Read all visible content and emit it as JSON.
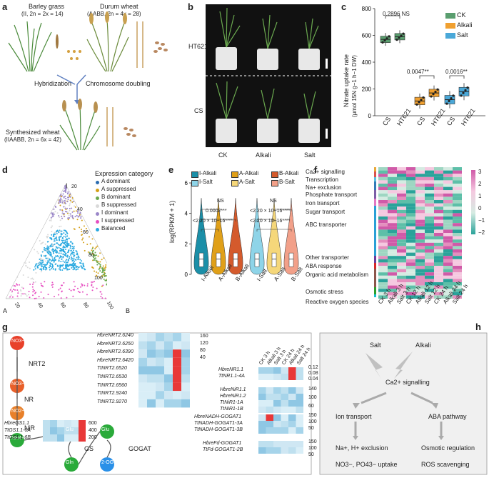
{
  "panels": [
    "a",
    "b",
    "c",
    "d",
    "e",
    "f",
    "g",
    "h"
  ],
  "a": {
    "barley_name": "Barley grass",
    "barley_genome": "(II, 2n = 2x = 14)",
    "durum_name": "Durum wheat",
    "durum_genome": "(AABB, 2n = 4x = 28)",
    "hybridization": "Hybridization",
    "doubling": "Chromosome doubling",
    "synth_name": "Synthesized wheat",
    "synth_genome": "(IIAABB, 2n = 6x = 42)"
  },
  "b": {
    "row1": "HT621",
    "row2": "CS",
    "cols": [
      "CK",
      "Alkali",
      "Salt"
    ]
  },
  "c": {
    "ylabel": "Nitrate uptake rate",
    "ylabel2": "(μmol 15N g−1 h−1 DW)",
    "legend": [
      "CK",
      "Alkali",
      "Salt"
    ],
    "legend_colors": [
      "#5a9e6f",
      "#f0a030",
      "#4aa8d8"
    ],
    "annotations": [
      "0.2896 NS",
      "0.0047**",
      "0.0016**"
    ],
    "xticks": [
      "CS",
      "HT621",
      "CS",
      "HT621",
      "CS",
      "HT621"
    ]
  },
  "chart_data": {
    "type": "box",
    "ylabel": "Nitrate uptake rate",
    "ylim": [
      0,
      800
    ],
    "yticks": [
      0,
      200,
      400,
      600,
      800
    ],
    "categories": [
      "CS",
      "HT621",
      "CS",
      "HT621",
      "CS",
      "HT621"
    ],
    "series": [
      {
        "name": "CK",
        "medians": [
          570,
          590
        ]
      },
      {
        "name": "Alkali",
        "medians": [
          110,
          170
        ]
      },
      {
        "name": "Salt",
        "medians": [
          120,
          180
        ]
      }
    ]
  },
  "d": {
    "legend_title": "Expression category",
    "categories": [
      "A dominant",
      "A suppressed",
      "B dominant",
      "B suppressed",
      "I dominant",
      "I suppressed",
      "Balanced"
    ],
    "colors": [
      "#2b6cb0",
      "#d4a017",
      "#6aa84f",
      "#d9d9d9",
      "#9a86c8",
      "#e64fc1",
      "#2aa9e0"
    ],
    "vertices": [
      "I",
      "A",
      "B"
    ],
    "ticks": [
      "20",
      "40",
      "60",
      "80",
      "100"
    ]
  },
  "e": {
    "ylabel": "log(RPKM + 1)",
    "legend": [
      "I-Alkali",
      "A-Alkali",
      "B-Alkali",
      "I-Salt",
      "A-Salt",
      "B-Salt"
    ],
    "colors": [
      "#1b8fa8",
      "#e0a019",
      "#d45a2c",
      "#8ed4e8",
      "#f5d77a",
      "#f2a089"
    ],
    "xticks": [
      "I-Alkali",
      "A-Alkali",
      "B-Alkali",
      "I-Salt",
      "A-Salt",
      "B-Salt"
    ],
    "yticks": [
      "0",
      "2",
      "4",
      "6"
    ],
    "stats_left": [
      "NS",
      "0.0002***",
      "<2.20 × 10−16****"
    ],
    "stats_right": [
      "NS",
      "<2.20 × 10−16****",
      "<2.20 × 10−16****"
    ]
  },
  "f": {
    "row_labels": [
      "Ca2+ signalling",
      "Transcription",
      "Na+ exclusion",
      "Phosphate transport",
      "Iron transport",
      "Sugar transport",
      "ABC transporter",
      "Other transporter",
      "ABA response",
      "Organic acid metabolism",
      "Osmotic stress",
      "Reactive oxygen species"
    ],
    "row_colors": [
      "#e8a838",
      "#d9534f",
      "#5bc0de",
      "#337ab7",
      "#7b5ea7",
      "#e377c2",
      "#2a9fd6",
      "#6a3d9a",
      "#d62728",
      "#8c564b",
      "#2ca02c",
      "#17becf"
    ],
    "col_labels": [
      "CK 3 h",
      "Alkali 3 h",
      "Salt 3 h",
      "CK 12 h",
      "Alkali 12 h",
      "Salt 12 h",
      "CK 24 h",
      "Alkali 24 h",
      "Salt 24 h"
    ],
    "scale": [
      "3",
      "2",
      "1",
      "0",
      "−1",
      "−2"
    ]
  },
  "g": {
    "pathway": [
      "NO3−",
      "NO3−",
      "NO2−",
      "NH4+",
      "Glu",
      "Glu",
      "Gln",
      "2-OG"
    ],
    "enzymes": [
      "NRT2",
      "NR",
      "NiR",
      "GS",
      "GOGAT"
    ],
    "nrt_genes": [
      "HbreNRT2.6240",
      "HbreNRT2.6250",
      "HbreNRT2.6390",
      "HbreNRT2.6420",
      "TtNRT2.6520",
      "TtNRT2.6530",
      "TtNRT2.6560",
      "TtNRT2.9240",
      "TtNRT2.9270"
    ],
    "nrt_scale": [
      "160",
      "120",
      "80",
      "40"
    ],
    "col_labels": [
      "CK 3 h",
      "Alkali 3 h",
      "Salt 3 h",
      "CK 24 h",
      "Alkali 24 h",
      "Salt 24 h"
    ],
    "nr_genes": [
      "HbreNR1.1",
      "TtNR1.1-4A"
    ],
    "nr_scale": [
      "0.12",
      "0.08",
      "0.04"
    ],
    "nir_genes": [
      "HbreNiR1.1",
      "HbreNiR1.2",
      "TtNiR1-1A",
      "TtNiR1-1B"
    ],
    "nir_scale": [
      "140",
      "100",
      "60"
    ],
    "nadh_genes": [
      "HbreNADH-GOGAT1",
      "TtNADH-GOGAT1-3A",
      "TtNADH-GOGAT1-3B"
    ],
    "nadh_scale": [
      "150",
      "100",
      "50"
    ],
    "fd_genes": [
      "HbreFd-GOGAT1",
      "TtFd-GOGAT1-2B"
    ],
    "fd_scale": [
      "150",
      "100",
      "50"
    ],
    "gs_genes": [
      "HbreGS1.1",
      "TtGS1.1-6A",
      "TtGS1.1-6B"
    ],
    "gs_scale": [
      "600",
      "400",
      "200"
    ]
  },
  "h": {
    "salt": "Salt",
    "alkali": "Alkali",
    "ca": "Ca2+ signalling",
    "ion": "Ion transport",
    "aba": "ABA pathway",
    "na": "Na+, H+ exclusion",
    "osm": "Osmotic regulation",
    "no3": "NO3−, PO43− uptake",
    "ros": "ROS scavenging"
  }
}
